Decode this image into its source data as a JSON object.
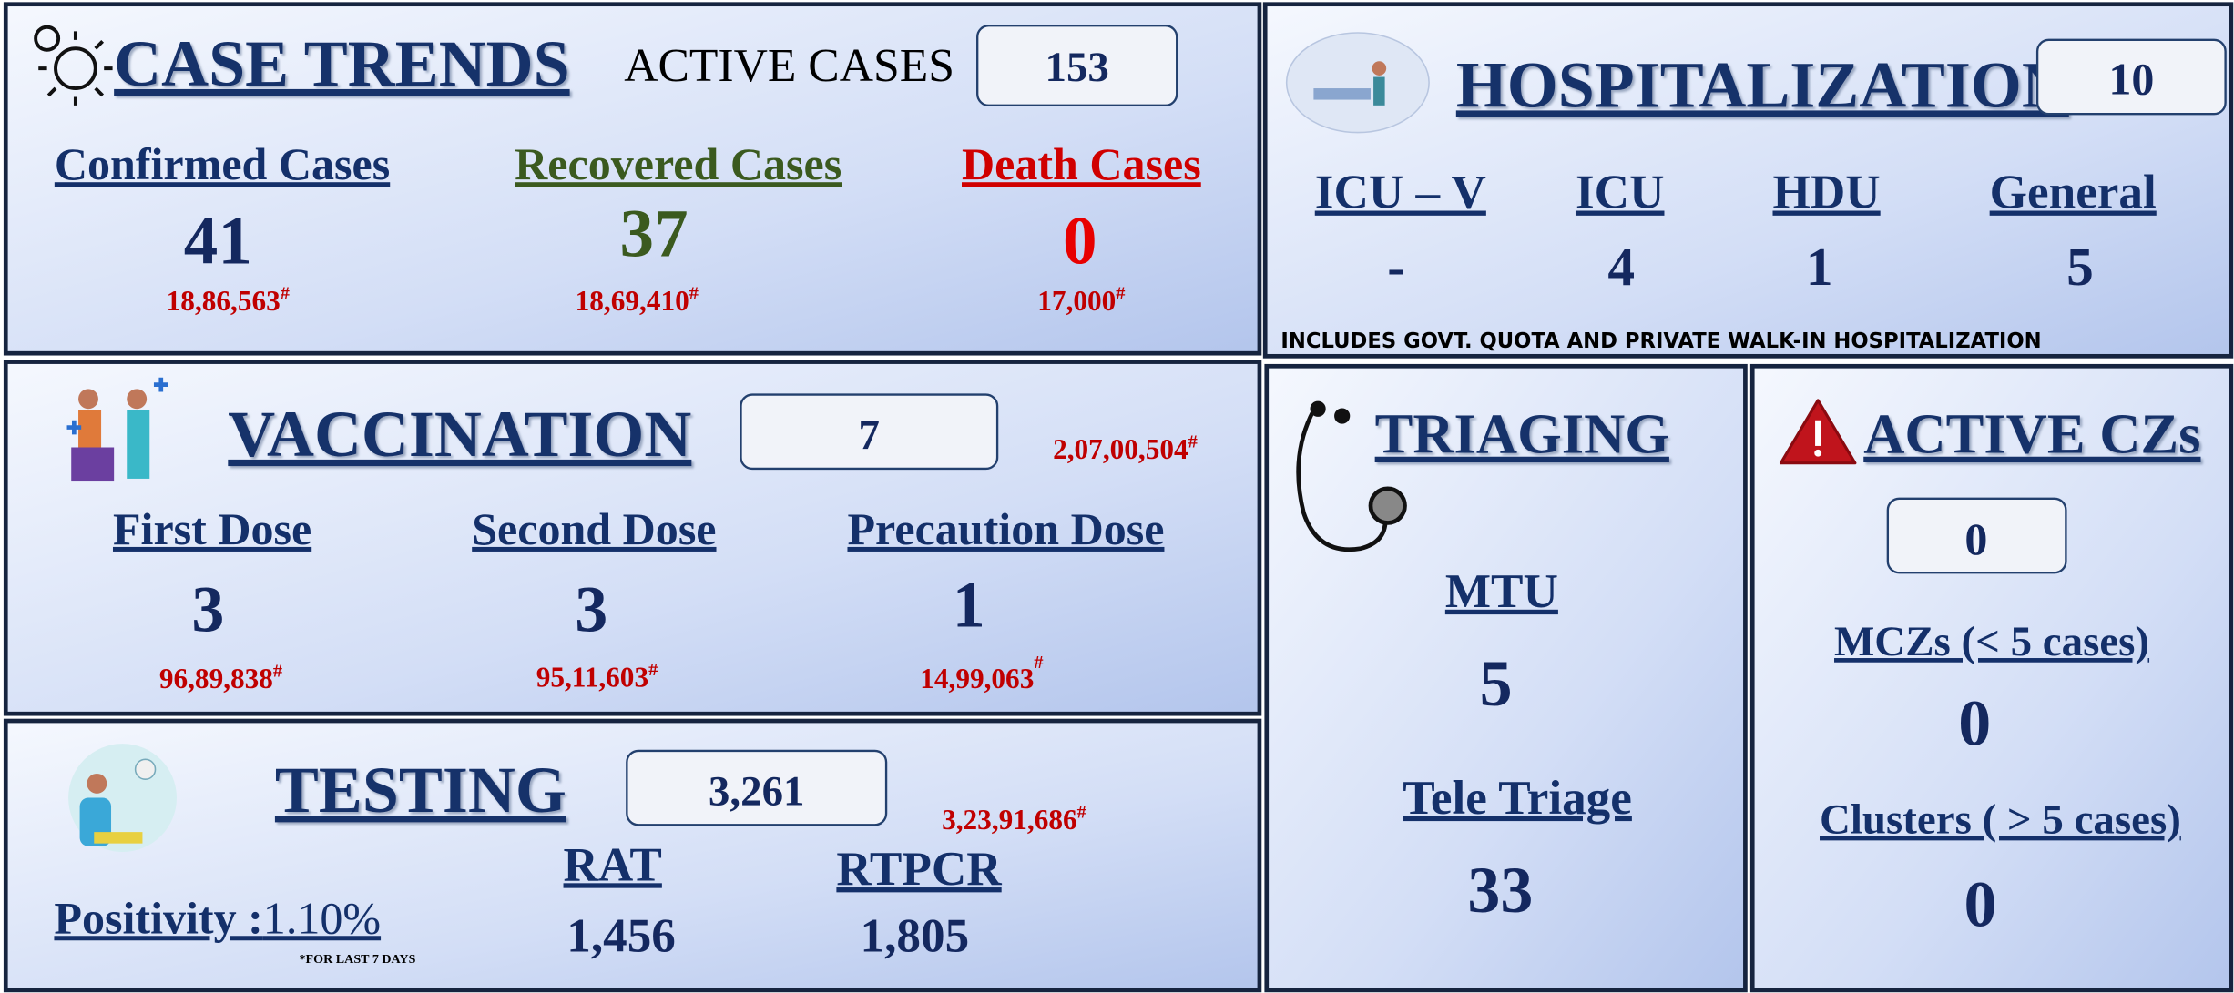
{
  "footnote_mark": "#",
  "case_trends": {
    "title": "CASE TRENDS",
    "active_label": "ACTIVE CASES",
    "active_value": "153",
    "items": [
      {
        "label": "Confirmed Cases",
        "value": "41",
        "cumulative": "18,86,563"
      },
      {
        "label": "Recovered Cases",
        "value": "37",
        "cumulative": "18,69,410"
      },
      {
        "label": "Death Cases",
        "value": "0",
        "cumulative": "17,000"
      }
    ]
  },
  "hospitalization": {
    "title": "HOSPITALIZATION",
    "value": "10",
    "items": [
      {
        "label": "ICU – V",
        "value": "-"
      },
      {
        "label": "ICU",
        "value": "4"
      },
      {
        "label": "HDU",
        "value": "1"
      },
      {
        "label": "General",
        "value": "5"
      }
    ],
    "note": "INCLUDES GOVT. QUOTA AND PRIVATE WALK-IN HOSPITALIZATION"
  },
  "vaccination": {
    "title": "VACCINATION",
    "value": "7",
    "cumulative": "2,07,00,504",
    "items": [
      {
        "label": "First Dose",
        "value": "3",
        "cumulative": "96,89,838"
      },
      {
        "label": "Second Dose",
        "value": "3",
        "cumulative": "95,11,603"
      },
      {
        "label": "Precaution Dose",
        "value": "1",
        "cumulative": "14,99,063"
      }
    ]
  },
  "testing": {
    "title": "TESTING",
    "value": "3,261",
    "cumulative": "3,23,91,686",
    "positivity_label": "Positivity :",
    "positivity_value": "1.10%",
    "positivity_note": "*FOR LAST 7 DAYS",
    "items": [
      {
        "label": "RAT",
        "value": "1,456"
      },
      {
        "label": "RTPCR",
        "value": "1,805"
      }
    ]
  },
  "triaging": {
    "title": "TRIAGING",
    "items": [
      {
        "label": "MTU",
        "value": "5"
      },
      {
        "label": "Tele Triage",
        "value": "33"
      }
    ]
  },
  "active_czs": {
    "title": "ACTIVE CZs",
    "value": "0",
    "items": [
      {
        "label": "MCZs (< 5 cases)",
        "value": "0"
      },
      {
        "label": "Clusters ( > 5 cases)",
        "value": "0"
      }
    ]
  }
}
